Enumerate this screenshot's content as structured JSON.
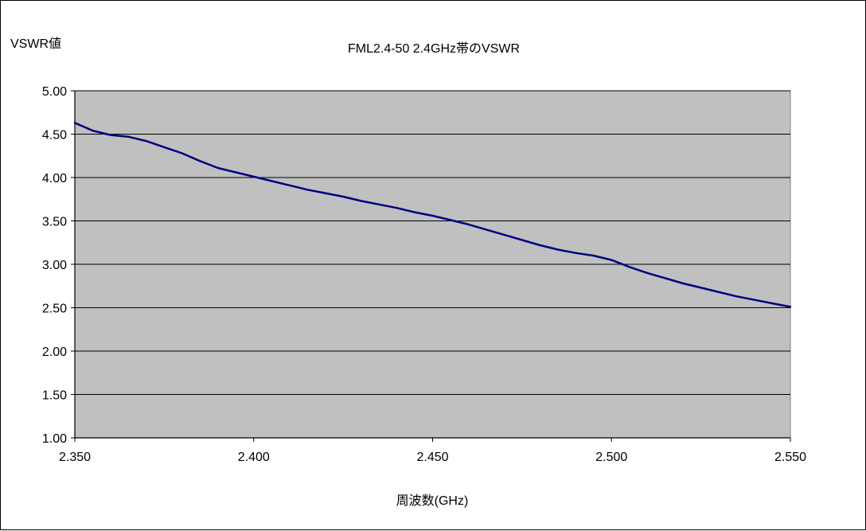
{
  "chart_data": {
    "type": "line",
    "title": "FML2.4-50 2.4GHz帯のVSWR",
    "xlabel": "周波数(GHz)",
    "ylabel": "VSWR値",
    "xlim": [
      2.35,
      2.55
    ],
    "ylim": [
      1.0,
      5.0
    ],
    "x_ticks": [
      "2.350",
      "2.400",
      "2.450",
      "2.500",
      "2.550"
    ],
    "y_ticks": [
      "1.00",
      "1.50",
      "2.00",
      "2.50",
      "3.00",
      "3.50",
      "4.00",
      "4.50",
      "5.00"
    ],
    "grid": true,
    "legend": "none",
    "colors": {
      "plot_bg": "#c0c0c0",
      "line": "#000080",
      "grid": "#000000"
    },
    "series": [
      {
        "x": [
          2.35,
          2.355,
          2.36,
          2.365,
          2.37,
          2.375,
          2.38,
          2.385,
          2.39,
          2.395,
          2.4,
          2.405,
          2.41,
          2.415,
          2.42,
          2.425,
          2.43,
          2.435,
          2.44,
          2.445,
          2.45,
          2.455,
          2.46,
          2.465,
          2.47,
          2.475,
          2.48,
          2.485,
          2.49,
          2.495,
          2.5,
          2.505,
          2.51,
          2.515,
          2.52,
          2.525,
          2.53,
          2.535,
          2.54,
          2.545,
          2.55
        ],
        "values": [
          4.63,
          4.54,
          4.49,
          4.47,
          4.42,
          4.35,
          4.28,
          4.19,
          4.11,
          4.06,
          4.01,
          3.96,
          3.91,
          3.86,
          3.82,
          3.78,
          3.73,
          3.69,
          3.65,
          3.6,
          3.56,
          3.51,
          3.46,
          3.4,
          3.34,
          3.28,
          3.22,
          3.17,
          3.13,
          3.1,
          3.05,
          2.97,
          2.9,
          2.84,
          2.78,
          2.73,
          2.68,
          2.63,
          2.59,
          2.55,
          2.51
        ]
      }
    ]
  }
}
